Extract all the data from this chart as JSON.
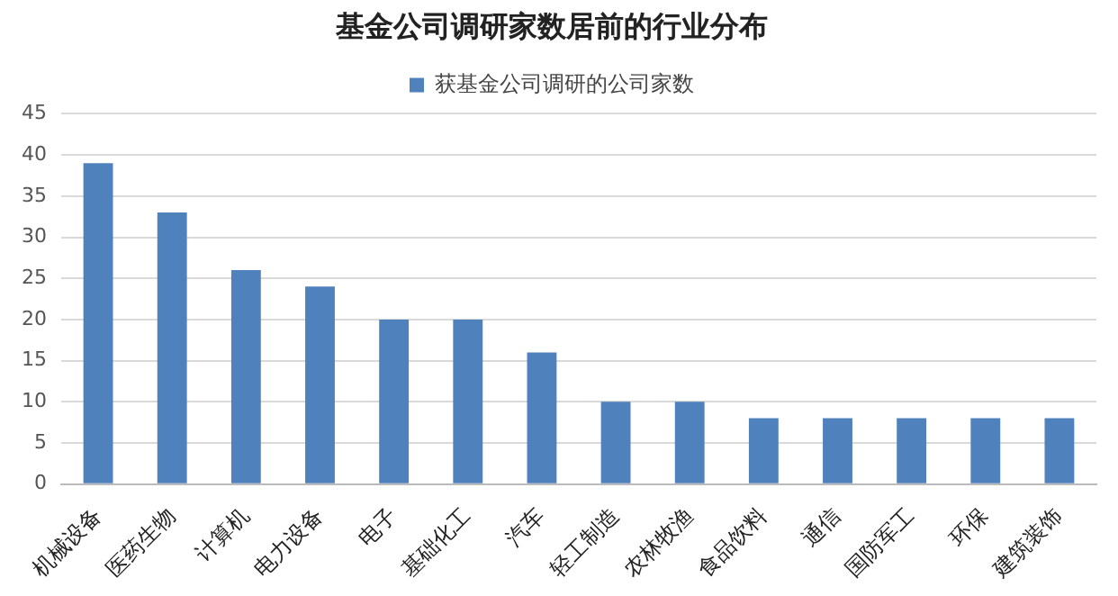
{
  "chart_data": {
    "type": "bar",
    "title": "基金公司调研家数居前的行业分布",
    "categories": [
      "机械设备",
      "医药生物",
      "计算机",
      "电力设备",
      "电子",
      "基础化工",
      "汽车",
      "轻工制造",
      "农林牧渔",
      "食品饮料",
      "通信",
      "国防军工",
      "环保",
      "建筑装饰"
    ],
    "series": [
      {
        "name": "获基金公司调研的公司家数",
        "color": "#4f81bd",
        "values": [
          39,
          33,
          26,
          24,
          20,
          20,
          16,
          10,
          10,
          8,
          8,
          8,
          8,
          8
        ]
      }
    ],
    "ylim": [
      0,
      45
    ],
    "yticks": [
      0,
      5,
      10,
      15,
      20,
      25,
      30,
      35,
      40,
      45
    ],
    "grid": "y",
    "legend": "top"
  }
}
